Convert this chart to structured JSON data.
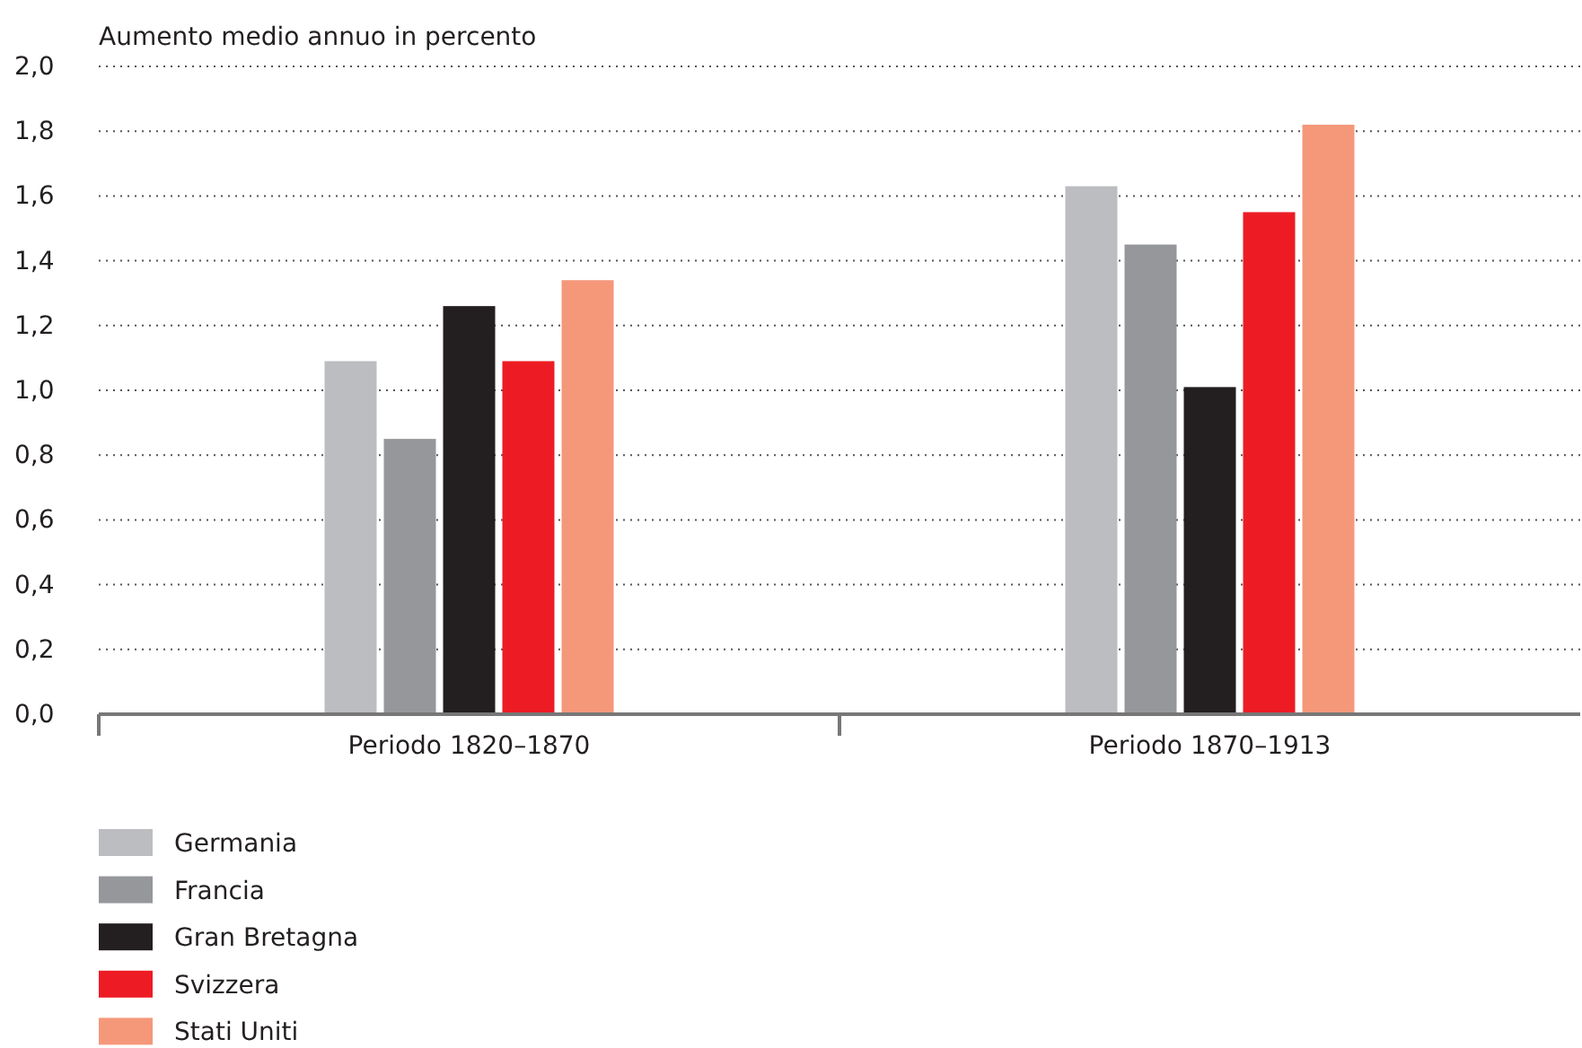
{
  "chart_data": {
    "type": "bar",
    "ylabel": "Aumento medio annuo in percento",
    "categories": [
      "Periodo 1820–1870",
      "Periodo 1870–1913"
    ],
    "series": [
      {
        "name": "Germania",
        "color": "#bcbdc0",
        "values": [
          1.09,
          1.63
        ]
      },
      {
        "name": "Francia",
        "color": "#96979a",
        "values": [
          0.85,
          1.45
        ]
      },
      {
        "name": "Gran Bretagna",
        "color": "#231f20",
        "values": [
          1.26,
          1.01
        ]
      },
      {
        "name": "Svizzera",
        "color": "#ed1c24",
        "values": [
          1.09,
          1.55
        ]
      },
      {
        "name": "Stati Uniti",
        "color": "#f5987a",
        "values": [
          1.34,
          1.82
        ]
      }
    ],
    "ylim": [
      0,
      2
    ],
    "yticks": [
      {
        "value": 0,
        "label": "0,0"
      },
      {
        "value": 0.2,
        "label": "0,2"
      },
      {
        "value": 0.4,
        "label": "0,4"
      },
      {
        "value": 0.6,
        "label": "0,6"
      },
      {
        "value": 0.8,
        "label": "0,8"
      },
      {
        "value": 1,
        "label": "1,0"
      },
      {
        "value": 1.2,
        "label": "1,2"
      },
      {
        "value": 1.4,
        "label": "1,4"
      },
      {
        "value": 1.6,
        "label": "1,6"
      },
      {
        "value": 1.8,
        "label": "1,8"
      },
      {
        "value": 2,
        "label": "2,0"
      }
    ],
    "grid": "y",
    "legend": "bottom left"
  }
}
